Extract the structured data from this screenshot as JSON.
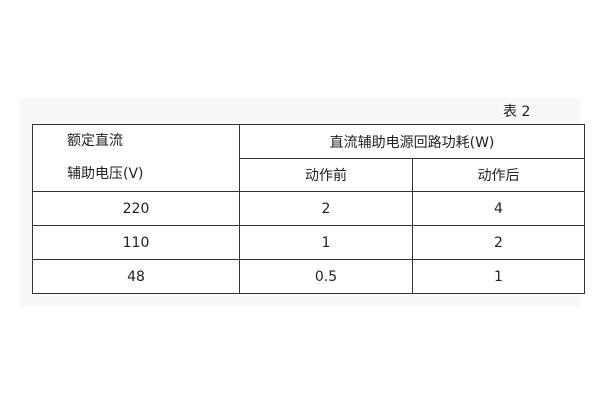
{
  "caption": "表 2",
  "table": {
    "left_header_line1": "额定直流",
    "left_header_line2": "辅助电压(V)",
    "group_header": "直流辅助电源回路功耗(W)",
    "sub_headers": [
      "动作前",
      "动作后"
    ],
    "rows": [
      [
        "220",
        "2",
        "4"
      ],
      [
        "110",
        "1",
        "2"
      ],
      [
        "48",
        "0.5",
        "1"
      ]
    ]
  }
}
